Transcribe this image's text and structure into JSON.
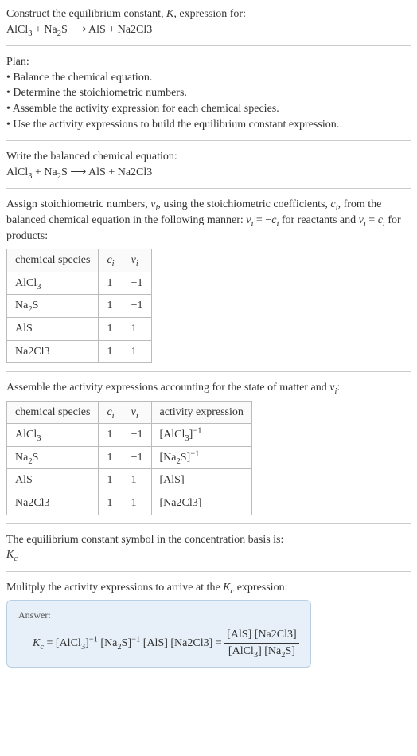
{
  "intro": {
    "line1": "Construct the equilibrium constant, <i>K</i>, expression for:",
    "line2": "AlCl<sub>3</sub> + Na<sub>2</sub>S ⟶ AlS + Na2Cl3"
  },
  "plan": {
    "heading": "Plan:",
    "items": [
      "• Balance the chemical equation.",
      "• Determine the stoichiometric numbers.",
      "• Assemble the activity expression for each chemical species.",
      "• Use the activity expressions to build the equilibrium constant expression."
    ]
  },
  "balanced": {
    "heading": "Write the balanced chemical equation:",
    "equation": "AlCl<sub>3</sub> + Na<sub>2</sub>S ⟶ AlS + Na2Cl3"
  },
  "stoich": {
    "text": "Assign stoichiometric numbers, <i>ν<sub>i</sub></i>, using the stoichiometric coefficients, <i>c<sub>i</sub></i>, from the balanced chemical equation in the following manner: <i>ν<sub>i</sub></i> = −<i>c<sub>i</sub></i> for reactants and <i>ν<sub>i</sub></i> = <i>c<sub>i</sub></i> for products:",
    "cols": [
      "chemical species",
      "<i>c<sub>i</sub></i>",
      "<i>ν<sub>i</sub></i>"
    ],
    "rows": [
      [
        "AlCl<sub>3</sub>",
        "1",
        "−1"
      ],
      [
        "Na<sub>2</sub>S",
        "1",
        "−1"
      ],
      [
        "AlS",
        "1",
        "1"
      ],
      [
        "Na2Cl3",
        "1",
        "1"
      ]
    ]
  },
  "activity": {
    "text": "Assemble the activity expressions accounting for the state of matter and <i>ν<sub>i</sub></i>:",
    "cols": [
      "chemical species",
      "<i>c<sub>i</sub></i>",
      "<i>ν<sub>i</sub></i>",
      "activity expression"
    ],
    "rows": [
      [
        "AlCl<sub>3</sub>",
        "1",
        "−1",
        "[AlCl<sub>3</sub>]<sup>−1</sup>"
      ],
      [
        "Na<sub>2</sub>S",
        "1",
        "−1",
        "[Na<sub>2</sub>S]<sup>−1</sup>"
      ],
      [
        "AlS",
        "1",
        "1",
        "[AlS]"
      ],
      [
        "Na2Cl3",
        "1",
        "1",
        "[Na2Cl3]"
      ]
    ]
  },
  "symbol": {
    "line1": "The equilibrium constant symbol in the concentration basis is:",
    "line2": "<i>K<sub>c</sub></i>"
  },
  "multiply": {
    "text": "Mulitply the activity expressions to arrive at the <i>K<sub>c</sub></i> expression:"
  },
  "answer": {
    "label": "Answer:",
    "lhs": "<i>K<sub>c</sub></i> = [AlCl<sub>3</sub>]<sup>−1</sup> [Na<sub>2</sub>S]<sup>−1</sup> [AlS] [Na2Cl3] = ",
    "num": "[AlS] [Na2Cl3]",
    "den": "[AlCl<sub>3</sub>] [Na<sub>2</sub>S]"
  }
}
